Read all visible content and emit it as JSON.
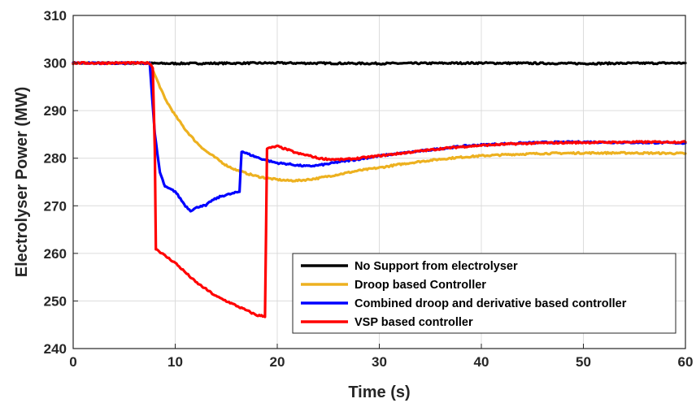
{
  "chart_data": {
    "type": "line",
    "title": "",
    "xlabel": "Time (s)",
    "ylabel": "Electrolyser Power (MW)",
    "xlim": [
      0,
      60
    ],
    "ylim": [
      240,
      310
    ],
    "xticks": [
      0,
      10,
      20,
      30,
      40,
      50,
      60
    ],
    "yticks": [
      240,
      250,
      260,
      270,
      280,
      290,
      300,
      310
    ],
    "xtick_labels": [
      "0",
      "10",
      "20",
      "30",
      "40",
      "50",
      "60"
    ],
    "ytick_labels": [
      "240",
      "250",
      "260",
      "270",
      "280",
      "290",
      "300",
      "310"
    ],
    "grid": true,
    "legend_position": "bottom-right",
    "series": [
      {
        "name": "No Support from electrolyser",
        "color": "#000000",
        "points": [
          [
            0,
            300
          ],
          [
            10,
            299.9
          ],
          [
            20,
            300
          ],
          [
            30,
            299.9
          ],
          [
            40,
            300
          ],
          [
            50,
            299.9
          ],
          [
            60,
            300
          ]
        ]
      },
      {
        "name": "Droop based Controller",
        "color": "#EDB120",
        "points": [
          [
            0,
            300
          ],
          [
            7.5,
            300
          ],
          [
            8,
            297.5
          ],
          [
            9,
            292.5
          ],
          [
            10,
            289
          ],
          [
            11,
            286
          ],
          [
            12,
            283.5
          ],
          [
            13,
            281.5
          ],
          [
            14,
            280
          ],
          [
            15,
            278.5
          ],
          [
            16,
            277.5
          ],
          [
            17,
            276.8
          ],
          [
            18,
            276.2
          ],
          [
            19,
            275.8
          ],
          [
            20,
            275.5
          ],
          [
            21,
            275.3
          ],
          [
            22,
            275.3
          ],
          [
            23,
            275.5
          ],
          [
            24,
            275.8
          ],
          [
            25,
            276.2
          ],
          [
            26,
            276.6
          ],
          [
            27,
            277
          ],
          [
            28,
            277.4
          ],
          [
            30,
            278
          ],
          [
            32,
            278.7
          ],
          [
            34,
            279.3
          ],
          [
            36,
            279.8
          ],
          [
            38,
            280.2
          ],
          [
            40,
            280.5
          ],
          [
            43,
            280.8
          ],
          [
            46,
            281
          ],
          [
            50,
            281.1
          ],
          [
            55,
            281.1
          ],
          [
            60,
            281
          ]
        ]
      },
      {
        "name": "Combined droop and derivative based controller",
        "color": "#0000FF",
        "points": [
          [
            0,
            300
          ],
          [
            7.5,
            300
          ],
          [
            8,
            285
          ],
          [
            8.5,
            277
          ],
          [
            9,
            274
          ],
          [
            9.5,
            273.5
          ],
          [
            10,
            273
          ],
          [
            10.5,
            271.5
          ],
          [
            11,
            270
          ],
          [
            11.5,
            269
          ],
          [
            12,
            269.5
          ],
          [
            12.5,
            270
          ],
          [
            13,
            270
          ],
          [
            13.5,
            271
          ],
          [
            14,
            271.5
          ],
          [
            14.5,
            272
          ],
          [
            15,
            272.3
          ],
          [
            15.5,
            272.5
          ],
          [
            16,
            272.8
          ],
          [
            16.3,
            273
          ],
          [
            16.5,
            281.5
          ],
          [
            17,
            281
          ],
          [
            18,
            280.2
          ],
          [
            19,
            279.5
          ],
          [
            20,
            279
          ],
          [
            21,
            278.8
          ],
          [
            22,
            278.5
          ],
          [
            23,
            278.3
          ],
          [
            24,
            278.5
          ],
          [
            25,
            278.8
          ],
          [
            26,
            279.2
          ],
          [
            27,
            279.5
          ],
          [
            28,
            279.8
          ],
          [
            30,
            280.5
          ],
          [
            32,
            281
          ],
          [
            34,
            281.5
          ],
          [
            36,
            282
          ],
          [
            38,
            282.5
          ],
          [
            40,
            282.8
          ],
          [
            43,
            283.1
          ],
          [
            46,
            283.3
          ],
          [
            50,
            283.4
          ],
          [
            55,
            283.3
          ],
          [
            60,
            283.2
          ]
        ]
      },
      {
        "name": "VSP based controller",
        "color": "#FF0000",
        "points": [
          [
            0,
            300
          ],
          [
            7.5,
            300
          ],
          [
            7.8,
            299
          ],
          [
            8,
            282
          ],
          [
            8.1,
            261
          ],
          [
            9,
            259.5
          ],
          [
            10,
            258
          ],
          [
            11,
            256
          ],
          [
            12,
            254
          ],
          [
            13,
            252.5
          ],
          [
            14,
            251
          ],
          [
            15,
            250
          ],
          [
            16,
            249
          ],
          [
            17,
            248
          ],
          [
            18,
            247
          ],
          [
            18.8,
            246.8
          ],
          [
            19,
            282
          ],
          [
            20,
            282.5
          ],
          [
            21,
            281.8
          ],
          [
            22,
            281
          ],
          [
            23,
            280.6
          ],
          [
            24,
            280
          ],
          [
            25,
            279.8
          ],
          [
            26,
            279.7
          ],
          [
            27,
            279.8
          ],
          [
            28,
            280
          ],
          [
            30,
            280.5
          ],
          [
            32,
            281
          ],
          [
            34,
            281.5
          ],
          [
            36,
            282
          ],
          [
            38,
            282.4
          ],
          [
            40,
            282.7
          ],
          [
            43,
            283
          ],
          [
            46,
            283.2
          ],
          [
            50,
            283.3
          ],
          [
            55,
            283.4
          ],
          [
            60,
            283.4
          ]
        ]
      }
    ]
  }
}
